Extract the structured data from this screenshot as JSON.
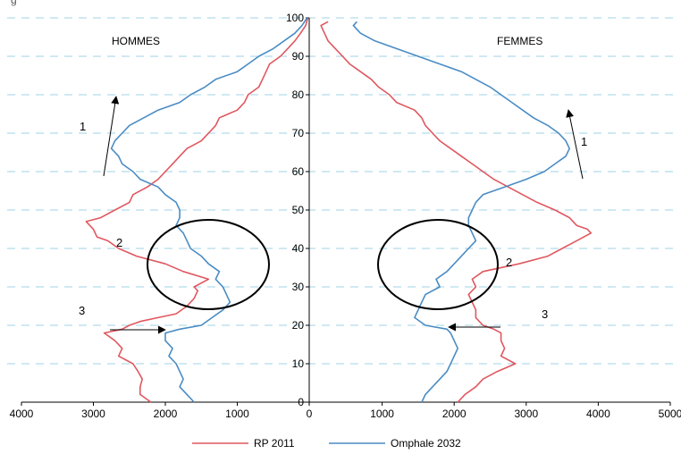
{
  "header_partial_text": "g",
  "hommes_label": "HOMMES",
  "femmes_label": "FEMMES",
  "colors": {
    "rp2011": "#e0575f",
    "omphale2032": "#4a8cc4"
  },
  "chart_data": {
    "type": "line",
    "subtype": "population-pyramid",
    "panels": [
      "HOMMES",
      "FEMMES"
    ],
    "x_ticks_hommes": [
      "4000",
      "3000",
      "2000",
      "1000",
      "0"
    ],
    "x_ticks_femmes": [
      "1000",
      "2000",
      "3000",
      "4000",
      "5000"
    ],
    "y_ticks": [
      "0",
      "10",
      "20",
      "30",
      "40",
      "50",
      "60",
      "70",
      "80",
      "90",
      "100"
    ],
    "xlim_hommes": [
      4000,
      0
    ],
    "xlim_femmes": [
      0,
      5000
    ],
    "ylim": [
      0,
      100
    ],
    "grid": "horizontal dashed",
    "legend_position": "bottom",
    "series": [
      {
        "name": "RP 2011",
        "color": "#e0575f",
        "hommes": [
          [
            0,
            2200
          ],
          [
            2,
            2350
          ],
          [
            4,
            2350
          ],
          [
            6,
            2320
          ],
          [
            8,
            2380
          ],
          [
            10,
            2450
          ],
          [
            12,
            2650
          ],
          [
            14,
            2600
          ],
          [
            16,
            2700
          ],
          [
            18,
            2850
          ],
          [
            19,
            2600
          ],
          [
            20,
            2500
          ],
          [
            21,
            2350
          ],
          [
            22,
            2100
          ],
          [
            23,
            1850
          ],
          [
            25,
            1700
          ],
          [
            27,
            1600
          ],
          [
            29,
            1550
          ],
          [
            30,
            1600
          ],
          [
            32,
            1400
          ],
          [
            34,
            1750
          ],
          [
            36,
            2000
          ],
          [
            38,
            2400
          ],
          [
            40,
            2650
          ],
          [
            42,
            2800
          ],
          [
            43,
            2950
          ],
          [
            45,
            3000
          ],
          [
            47,
            3100
          ],
          [
            48,
            2900
          ],
          [
            50,
            2700
          ],
          [
            52,
            2500
          ],
          [
            54,
            2450
          ],
          [
            56,
            2250
          ],
          [
            58,
            2100
          ],
          [
            60,
            2000
          ],
          [
            62,
            1900
          ],
          [
            64,
            1800
          ],
          [
            66,
            1700
          ],
          [
            68,
            1500
          ],
          [
            70,
            1400
          ],
          [
            72,
            1300
          ],
          [
            74,
            1250
          ],
          [
            76,
            1000
          ],
          [
            78,
            900
          ],
          [
            80,
            850
          ],
          [
            82,
            700
          ],
          [
            84,
            650
          ],
          [
            86,
            600
          ],
          [
            88,
            550
          ],
          [
            90,
            400
          ],
          [
            92,
            300
          ],
          [
            94,
            200
          ],
          [
            96,
            120
          ],
          [
            98,
            50
          ],
          [
            100,
            20
          ]
        ],
        "femmes": [
          [
            0,
            2050
          ],
          [
            2,
            2150
          ],
          [
            4,
            2300
          ],
          [
            6,
            2400
          ],
          [
            8,
            2600
          ],
          [
            10,
            2850
          ],
          [
            12,
            2650
          ],
          [
            14,
            2700
          ],
          [
            16,
            2650
          ],
          [
            18,
            2650
          ],
          [
            19,
            2550
          ],
          [
            20,
            2400
          ],
          [
            22,
            2300
          ],
          [
            24,
            2300
          ],
          [
            26,
            2250
          ],
          [
            28,
            2200
          ],
          [
            30,
            2300
          ],
          [
            32,
            2250
          ],
          [
            34,
            2400
          ],
          [
            36,
            2900
          ],
          [
            38,
            3300
          ],
          [
            40,
            3500
          ],
          [
            42,
            3700
          ],
          [
            44,
            3900
          ],
          [
            45,
            3850
          ],
          [
            46,
            3700
          ],
          [
            48,
            3600
          ],
          [
            50,
            3400
          ],
          [
            52,
            3150
          ],
          [
            54,
            2950
          ],
          [
            56,
            2750
          ],
          [
            58,
            2550
          ],
          [
            60,
            2400
          ],
          [
            62,
            2250
          ],
          [
            64,
            2100
          ],
          [
            66,
            1950
          ],
          [
            68,
            1800
          ],
          [
            70,
            1700
          ],
          [
            72,
            1600
          ],
          [
            74,
            1550
          ],
          [
            76,
            1450
          ],
          [
            78,
            1200
          ],
          [
            80,
            1100
          ],
          [
            82,
            950
          ],
          [
            84,
            850
          ],
          [
            86,
            700
          ],
          [
            88,
            550
          ],
          [
            90,
            450
          ],
          [
            92,
            350
          ],
          [
            94,
            250
          ],
          [
            96,
            200
          ],
          [
            98,
            150
          ],
          [
            99,
            250
          ]
        ]
      },
      {
        "name": "Omphale 2032",
        "color": "#4a8cc4",
        "hommes": [
          [
            0,
            1600
          ],
          [
            2,
            1700
          ],
          [
            4,
            1800
          ],
          [
            6,
            1750
          ],
          [
            8,
            1800
          ],
          [
            10,
            1850
          ],
          [
            12,
            1950
          ],
          [
            14,
            1900
          ],
          [
            16,
            2000
          ],
          [
            18,
            2000
          ],
          [
            19,
            1800
          ],
          [
            20,
            1500
          ],
          [
            22,
            1350
          ],
          [
            24,
            1200
          ],
          [
            26,
            1100
          ],
          [
            28,
            1150
          ],
          [
            30,
            1200
          ],
          [
            32,
            1300
          ],
          [
            34,
            1250
          ],
          [
            36,
            1400
          ],
          [
            38,
            1500
          ],
          [
            40,
            1650
          ],
          [
            42,
            1700
          ],
          [
            44,
            1750
          ],
          [
            46,
            1850
          ],
          [
            48,
            1800
          ],
          [
            50,
            1800
          ],
          [
            52,
            1850
          ],
          [
            54,
            2000
          ],
          [
            56,
            2100
          ],
          [
            58,
            2350
          ],
          [
            60,
            2450
          ],
          [
            62,
            2600
          ],
          [
            64,
            2650
          ],
          [
            66,
            2750
          ],
          [
            68,
            2700
          ],
          [
            70,
            2600
          ],
          [
            72,
            2500
          ],
          [
            74,
            2300
          ],
          [
            76,
            2100
          ],
          [
            78,
            1800
          ],
          [
            80,
            1650
          ],
          [
            82,
            1450
          ],
          [
            84,
            1300
          ],
          [
            86,
            1000
          ],
          [
            88,
            850
          ],
          [
            90,
            700
          ],
          [
            92,
            500
          ],
          [
            94,
            350
          ],
          [
            96,
            200
          ],
          [
            98,
            100
          ],
          [
            100,
            30
          ]
        ],
        "femmes": [
          [
            0,
            1550
          ],
          [
            2,
            1600
          ],
          [
            4,
            1700
          ],
          [
            6,
            1800
          ],
          [
            8,
            1900
          ],
          [
            10,
            1950
          ],
          [
            12,
            2000
          ],
          [
            14,
            2050
          ],
          [
            16,
            2000
          ],
          [
            18,
            1950
          ],
          [
            19,
            1900
          ],
          [
            20,
            1600
          ],
          [
            22,
            1450
          ],
          [
            24,
            1500
          ],
          [
            26,
            1550
          ],
          [
            28,
            1600
          ],
          [
            30,
            1800
          ],
          [
            32,
            1750
          ],
          [
            34,
            1900
          ],
          [
            36,
            2000
          ],
          [
            38,
            2100
          ],
          [
            40,
            2200
          ],
          [
            42,
            2300
          ],
          [
            44,
            2250
          ],
          [
            46,
            2200
          ],
          [
            48,
            2200
          ],
          [
            50,
            2250
          ],
          [
            52,
            2300
          ],
          [
            54,
            2400
          ],
          [
            56,
            2700
          ],
          [
            58,
            3000
          ],
          [
            60,
            3250
          ],
          [
            62,
            3400
          ],
          [
            64,
            3550
          ],
          [
            66,
            3600
          ],
          [
            68,
            3550
          ],
          [
            70,
            3450
          ],
          [
            72,
            3300
          ],
          [
            74,
            3100
          ],
          [
            76,
            2950
          ],
          [
            78,
            2800
          ],
          [
            80,
            2650
          ],
          [
            82,
            2500
          ],
          [
            84,
            2300
          ],
          [
            86,
            2100
          ],
          [
            88,
            1800
          ],
          [
            90,
            1500
          ],
          [
            92,
            1200
          ],
          [
            94,
            900
          ],
          [
            96,
            700
          ],
          [
            98,
            600
          ],
          [
            99,
            650
          ]
        ]
      }
    ],
    "annotations": {
      "numbers_hommes": [
        "1",
        "2",
        "3"
      ],
      "numbers_femmes": [
        "1",
        "2",
        "3"
      ]
    }
  }
}
